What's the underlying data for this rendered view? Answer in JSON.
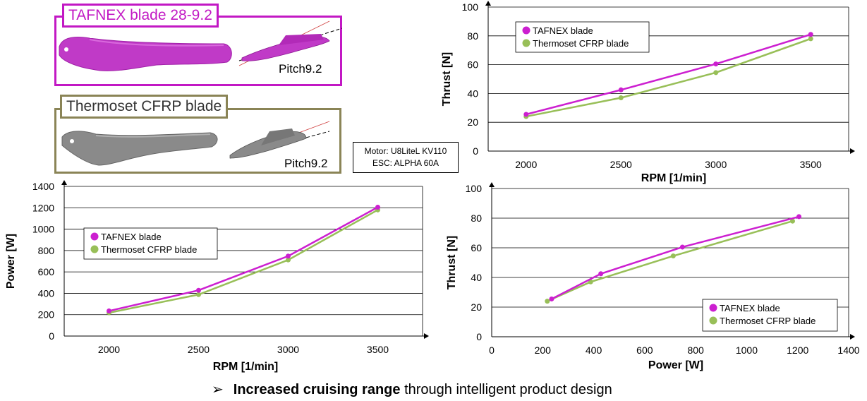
{
  "blades": {
    "tafnex_title": "TAFNEX blade 28-9.2",
    "tafnex_pitch": "Pitch9.2",
    "cfrp_title": "Thermoset CFRP blade",
    "cfrp_pitch": "Pitch9.2",
    "tafnex_color": "#c218c4",
    "cfrp_color": "#8a8456"
  },
  "motor": {
    "line1": "Motor: U8LiteL KV110",
    "line2": "ESC: ALPHA 60A"
  },
  "footer": {
    "arrow": "➢",
    "bold": "Increased cruising range",
    "rest": " through intelligent product design"
  },
  "colors": {
    "tafnex": "#cc1fd0",
    "cfrp": "#98bf58"
  },
  "chart_data": [
    {
      "id": "thrust-rpm",
      "type": "line",
      "xlabel": "RPM   [1/min]",
      "ylabel": "Thrust   [N]",
      "xlim": [
        1800,
        3700
      ],
      "ylim": [
        0,
        100
      ],
      "xticks": [
        2000,
        2500,
        3000,
        3500
      ],
      "yticks": [
        0,
        20,
        40,
        60,
        80,
        100
      ],
      "grid": true,
      "legend": "top-left",
      "series": [
        {
          "name": "TAFNEX blade",
          "x": [
            2000,
            2500,
            3000,
            3500
          ],
          "y": [
            25.5,
            42.5,
            60.5,
            81
          ]
        },
        {
          "name": "Thermoset CFRP blade",
          "x": [
            2000,
            2500,
            3000,
            3500
          ],
          "y": [
            24,
            37,
            54.5,
            78
          ]
        }
      ]
    },
    {
      "id": "power-rpm",
      "type": "line",
      "xlabel": "RPM   [1/min]",
      "ylabel": "Power   [W]",
      "xlim": [
        1750,
        3750
      ],
      "ylim": [
        0,
        1400
      ],
      "xticks": [
        2000,
        2500,
        3000,
        3500
      ],
      "yticks": [
        0,
        200,
        400,
        600,
        800,
        1000,
        1200,
        1400
      ],
      "grid": true,
      "legend": "left",
      "series": [
        {
          "name": "TAFNEX blade",
          "x": [
            2000,
            2500,
            3000,
            3500
          ],
          "y": [
            235,
            428,
            748,
            1205
          ]
        },
        {
          "name": "Thermoset CFRP blade",
          "x": [
            2000,
            2500,
            3000,
            3500
          ],
          "y": [
            218,
            388,
            712,
            1180
          ]
        }
      ]
    },
    {
      "id": "thrust-power",
      "type": "line",
      "xlabel": "Power   [W]",
      "ylabel": "Thrust   [N]",
      "xlim": [
        0,
        1400
      ],
      "ylim": [
        0,
        100
      ],
      "xticks": [
        0,
        200,
        400,
        600,
        800,
        1000,
        1200,
        1400
      ],
      "yticks": [
        0,
        20,
        40,
        60,
        80,
        100
      ],
      "grid": true,
      "legend": "bottom-right",
      "series": [
        {
          "name": "TAFNEX blade",
          "x": [
            235,
            428,
            748,
            1205
          ],
          "y": [
            25.5,
            42.5,
            60.5,
            81
          ]
        },
        {
          "name": "Thermoset CFRP blade",
          "x": [
            218,
            388,
            712,
            1180
          ],
          "y": [
            24,
            37,
            54.5,
            78
          ]
        }
      ]
    }
  ]
}
